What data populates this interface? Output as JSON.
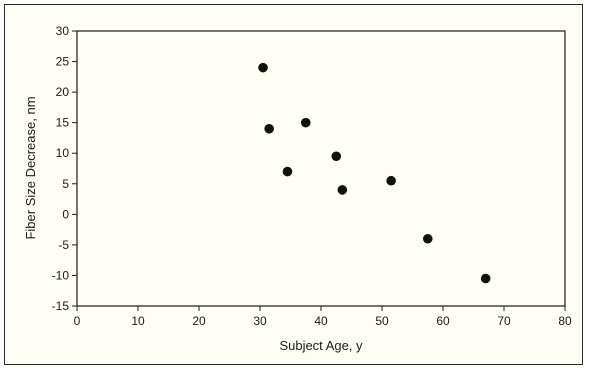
{
  "chart_data": {
    "type": "scatter",
    "title": "",
    "xlabel": "Subject Age, y",
    "ylabel": "Fiber Size Decrease, nm",
    "xlim": [
      0,
      80
    ],
    "ylim": [
      -15,
      30
    ],
    "x_ticks": [
      0,
      10,
      20,
      30,
      40,
      50,
      60,
      70,
      80
    ],
    "y_ticks": [
      -15,
      -10,
      -5,
      0,
      5,
      10,
      15,
      20,
      25,
      30
    ],
    "grid": false,
    "legend": "none",
    "marker_color": "#111111",
    "points": [
      {
        "x": 30.5,
        "y": 24
      },
      {
        "x": 31.5,
        "y": 14
      },
      {
        "x": 34.5,
        "y": 7
      },
      {
        "x": 37.5,
        "y": 15
      },
      {
        "x": 42.5,
        "y": 9.5
      },
      {
        "x": 43.5,
        "y": 4
      },
      {
        "x": 51.5,
        "y": 5.5
      },
      {
        "x": 57.5,
        "y": -4
      },
      {
        "x": 67,
        "y": -10.5
      }
    ]
  }
}
